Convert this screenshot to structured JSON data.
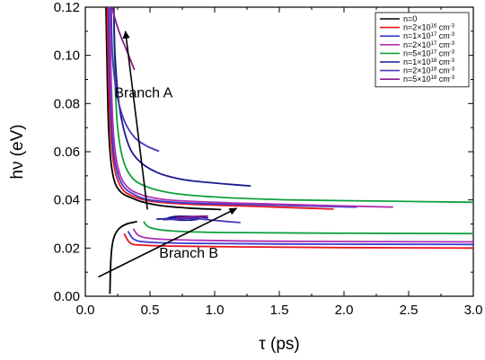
{
  "chart_data": {
    "type": "line",
    "xlabel": "τ (ps)",
    "ylabel": "hν (eV)",
    "xlim": [
      0.0,
      3.0
    ],
    "ylim": [
      0.0,
      0.12
    ],
    "x_ticks": [
      "0.0",
      "0.5",
      "1.0",
      "1.5",
      "2.0",
      "2.5",
      "3.0"
    ],
    "y_ticks": [
      "0.00",
      "0.02",
      "0.04",
      "0.06",
      "0.08",
      "0.10",
      "0.12"
    ],
    "legend_position": "top-right",
    "legend": [
      {
        "base": "n=0",
        "exp": "",
        "tail": "",
        "color": "#000000"
      },
      {
        "base": "n=2×10",
        "exp": "16",
        "tail": " cm",
        "tail_exp": "-3",
        "color": "#e8141e"
      },
      {
        "base": "n=1×10",
        "exp": "17",
        "tail": " cm",
        "tail_exp": "-3",
        "color": "#3a3ad0"
      },
      {
        "base": "n=2×10",
        "exp": "17",
        "tail": " cm",
        "tail_exp": "-3",
        "color": "#b030b0"
      },
      {
        "base": "n=5×10",
        "exp": "17",
        "tail": " cm",
        "tail_exp": "-3",
        "color": "#10a040"
      },
      {
        "base": "n=1×10",
        "exp": "18",
        "tail": " cm",
        "tail_exp": "-3",
        "color": "#1a1a90"
      },
      {
        "base": "n=2×10",
        "exp": "18",
        "tail": " cm",
        "tail_exp": "-3",
        "color": "#4a34b8"
      },
      {
        "base": "n=5×10",
        "exp": "18",
        "tail": " cm",
        "tail_exp": "-3",
        "color": "#8a1a8a"
      }
    ],
    "annotations": [
      {
        "text": "Branch  A",
        "x": 0.45,
        "y": 0.0825
      },
      {
        "text": "Branch B",
        "x": 0.8,
        "y": 0.016
      }
    ],
    "arrows": [
      {
        "x1": 0.48,
        "y1": 0.036,
        "x2": 0.31,
        "y2": 0.11
      },
      {
        "x1": 0.1,
        "y1": 0.008,
        "x2": 1.17,
        "y2": 0.0365
      }
    ],
    "series": [
      {
        "color": "#000000",
        "upper": [
          [
            0.16,
            0.12
          ],
          [
            0.17,
            0.09
          ],
          [
            0.18,
            0.07
          ],
          [
            0.2,
            0.055
          ],
          [
            0.23,
            0.047
          ],
          [
            0.28,
            0.043
          ],
          [
            0.35,
            0.041
          ],
          [
            0.45,
            0.039
          ],
          [
            0.6,
            0.0375
          ],
          [
            0.8,
            0.0366
          ],
          [
            1.05,
            0.036
          ]
        ],
        "lower": [
          [
            0.19,
            0.001
          ],
          [
            0.195,
            0.012
          ],
          [
            0.205,
            0.02
          ],
          [
            0.225,
            0.025
          ],
          [
            0.26,
            0.028
          ],
          [
            0.32,
            0.03
          ],
          [
            0.4,
            0.031
          ]
        ]
      },
      {
        "color": "#e8141e",
        "upper": [
          [
            0.17,
            0.12
          ],
          [
            0.18,
            0.09
          ],
          [
            0.2,
            0.065
          ],
          [
            0.23,
            0.052
          ],
          [
            0.28,
            0.045
          ],
          [
            0.35,
            0.042
          ],
          [
            0.5,
            0.0395
          ],
          [
            0.8,
            0.0382
          ],
          [
            1.2,
            0.0375
          ],
          [
            1.6,
            0.0368
          ],
          [
            1.92,
            0.0362
          ]
        ],
        "lower": [
          [
            0.3,
            0.026
          ],
          [
            0.35,
            0.022
          ],
          [
            0.45,
            0.0212
          ],
          [
            0.7,
            0.0208
          ],
          [
            1.2,
            0.0205
          ],
          [
            2.0,
            0.0202
          ],
          [
            3.0,
            0.02
          ]
        ]
      },
      {
        "color": "#3a3ad0",
        "upper": [
          [
            0.18,
            0.12
          ],
          [
            0.19,
            0.09
          ],
          [
            0.21,
            0.065
          ],
          [
            0.24,
            0.053
          ],
          [
            0.29,
            0.046
          ],
          [
            0.37,
            0.0425
          ],
          [
            0.5,
            0.04
          ],
          [
            0.8,
            0.0387
          ],
          [
            1.3,
            0.038
          ],
          [
            1.7,
            0.0375
          ],
          [
            2.1,
            0.037
          ]
        ],
        "lower": [
          [
            0.33,
            0.027
          ],
          [
            0.38,
            0.0235
          ],
          [
            0.5,
            0.0224
          ],
          [
            0.8,
            0.022
          ],
          [
            1.5,
            0.0217
          ],
          [
            3.0,
            0.0215
          ]
        ]
      },
      {
        "color": "#b030b0",
        "upper": [
          [
            0.19,
            0.12
          ],
          [
            0.2,
            0.09
          ],
          [
            0.22,
            0.066
          ],
          [
            0.25,
            0.054
          ],
          [
            0.3,
            0.047
          ],
          [
            0.4,
            0.0428
          ],
          [
            0.6,
            0.0402
          ],
          [
            1.0,
            0.039
          ],
          [
            1.5,
            0.0382
          ],
          [
            2.0,
            0.0375
          ],
          [
            2.38,
            0.037
          ]
        ],
        "lower": [
          [
            0.37,
            0.028
          ],
          [
            0.42,
            0.025
          ],
          [
            0.55,
            0.0238
          ],
          [
            0.9,
            0.0232
          ],
          [
            1.6,
            0.0228
          ],
          [
            3.0,
            0.0226
          ]
        ]
      },
      {
        "color": "#10a040",
        "upper": [
          [
            0.22,
            0.12
          ],
          [
            0.23,
            0.09
          ],
          [
            0.25,
            0.07
          ],
          [
            0.29,
            0.057
          ],
          [
            0.35,
            0.05
          ],
          [
            0.45,
            0.046
          ],
          [
            0.65,
            0.043
          ],
          [
            1.0,
            0.0412
          ],
          [
            1.6,
            0.04
          ],
          [
            2.3,
            0.0395
          ],
          [
            3.0,
            0.039
          ]
        ],
        "lower": [
          [
            0.45,
            0.031
          ],
          [
            0.5,
            0.0285
          ],
          [
            0.65,
            0.0272
          ],
          [
            1.0,
            0.0265
          ],
          [
            1.8,
            0.0262
          ],
          [
            3.0,
            0.026
          ]
        ]
      },
      {
        "color": "#1a1a90",
        "upper": [
          [
            0.22,
            0.12
          ],
          [
            0.23,
            0.1
          ],
          [
            0.26,
            0.08
          ],
          [
            0.32,
            0.065
          ],
          [
            0.4,
            0.057
          ],
          [
            0.55,
            0.0515
          ],
          [
            0.75,
            0.0485
          ],
          [
            1.0,
            0.047
          ],
          [
            1.28,
            0.0458
          ]
        ],
        "lower": [
          [
            0.55,
            0.032
          ],
          [
            0.62,
            0.0322
          ],
          [
            0.7,
            0.0326
          ],
          [
            0.8,
            0.0328
          ],
          [
            0.88,
            0.0322
          ],
          [
            0.8,
            0.0316
          ],
          [
            0.7,
            0.0318
          ],
          [
            0.64,
            0.0325
          ],
          [
            0.72,
            0.0332
          ],
          [
            0.85,
            0.033
          ],
          [
            0.95,
            0.0325
          ]
        ]
      },
      {
        "color": "#4a34b8",
        "upper": [
          [
            0.2,
            0.12
          ],
          [
            0.21,
            0.1
          ],
          [
            0.24,
            0.085
          ],
          [
            0.3,
            0.073
          ],
          [
            0.38,
            0.066
          ],
          [
            0.47,
            0.0625
          ],
          [
            0.57,
            0.0602
          ]
        ],
        "lower": [
          [
            0.6,
            0.0318
          ],
          [
            0.7,
            0.032
          ],
          [
            0.8,
            0.0324
          ],
          [
            0.9,
            0.032
          ],
          [
            1.0,
            0.0315
          ],
          [
            1.1,
            0.031
          ],
          [
            1.2,
            0.0306
          ]
        ]
      },
      {
        "color": "#8a1a8a",
        "upper": [
          [
            0.21,
            0.12
          ],
          [
            0.22,
            0.117
          ],
          [
            0.26,
            0.11
          ],
          [
            0.32,
            0.102
          ],
          [
            0.38,
            0.094
          ]
        ],
        "lower": [
          [
            0.7,
            0.0325
          ],
          [
            0.8,
            0.033
          ],
          [
            0.88,
            0.0332
          ],
          [
            0.95,
            0.0333
          ]
        ]
      }
    ]
  }
}
